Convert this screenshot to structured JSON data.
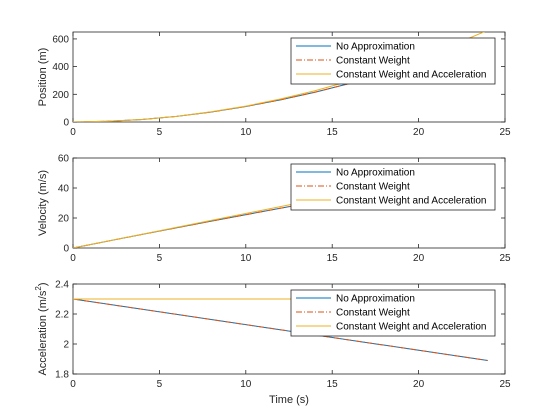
{
  "chart_data": [
    {
      "type": "line",
      "title": "",
      "xlabel": "",
      "ylabel": "Position (m)",
      "xlim": [
        0,
        25
      ],
      "ylim": [
        0,
        650
      ],
      "xticks": [
        0,
        5,
        10,
        15,
        20,
        25
      ],
      "xtick_labels": [
        "0",
        "5",
        "10",
        "15",
        "20",
        "25"
      ],
      "yticks": [
        0,
        200,
        400,
        600
      ],
      "ytick_labels": [
        "0",
        "200",
        "400",
        "600"
      ],
      "grid": false,
      "legend_position": "top-right",
      "series": [
        {
          "name": "No Approximation",
          "color": "#0072BD",
          "dash": "solid",
          "x": [
            0,
            2,
            4,
            6,
            8,
            10,
            12,
            14,
            16,
            18,
            20,
            22,
            24
          ],
          "y": [
            0,
            5,
            18,
            41,
            72,
            112,
            160,
            215,
            278,
            348,
            425,
            508,
            598
          ]
        },
        {
          "name": "Constant Weight",
          "color": "#D95319",
          "dash": "dashdot",
          "x": [
            0,
            2,
            4,
            6,
            8,
            10,
            12,
            14,
            16,
            18,
            20,
            22,
            24
          ],
          "y": [
            0,
            5,
            18,
            41,
            72,
            112,
            160,
            215,
            278,
            348,
            425,
            508,
            598
          ]
        },
        {
          "name": "Constant Weight and Acceleration",
          "color": "#EDB120",
          "dash": "solid",
          "x": [
            0,
            2,
            4,
            6,
            8,
            10,
            12,
            14,
            16,
            18,
            20,
            22,
            24
          ],
          "y": [
            0,
            5,
            18,
            41,
            74,
            115,
            166,
            226,
            295,
            373,
            460,
            557,
            662
          ]
        }
      ]
    },
    {
      "type": "line",
      "title": "",
      "xlabel": "",
      "ylabel": "Velocity (m/s)",
      "xlim": [
        0,
        25
      ],
      "ylim": [
        0,
        60
      ],
      "xticks": [
        0,
        5,
        10,
        15,
        20,
        25
      ],
      "xtick_labels": [
        "0",
        "5",
        "10",
        "15",
        "20",
        "25"
      ],
      "yticks": [
        0,
        20,
        40,
        60
      ],
      "ytick_labels": [
        "0",
        "20",
        "40",
        "60"
      ],
      "grid": false,
      "legend_position": "top-right",
      "series": [
        {
          "name": "No Approximation",
          "color": "#0072BD",
          "dash": "solid",
          "x": [
            0,
            4,
            8,
            12,
            16,
            20,
            24
          ],
          "y": [
            0,
            9.1,
            17.9,
            26.5,
            34.9,
            43.1,
            51.1
          ]
        },
        {
          "name": "Constant Weight",
          "color": "#D95319",
          "dash": "dashdot",
          "x": [
            0,
            4,
            8,
            12,
            16,
            20,
            24
          ],
          "y": [
            0,
            9.1,
            17.9,
            26.5,
            34.9,
            43.1,
            51.1
          ]
        },
        {
          "name": "Constant Weight and Acceleration",
          "color": "#EDB120",
          "dash": "solid",
          "x": [
            0,
            4,
            8,
            12,
            16,
            20,
            24
          ],
          "y": [
            0,
            9.2,
            18.4,
            27.6,
            36.8,
            46.0,
            55.2
          ]
        }
      ]
    },
    {
      "type": "line",
      "title": "",
      "xlabel": "Time (s)",
      "ylabel": "Acceleration (m/s",
      "ylabel_sup": "2",
      "ylabel_end": ")",
      "xlim": [
        0,
        25
      ],
      "ylim": [
        1.8,
        2.4
      ],
      "xticks": [
        0,
        5,
        10,
        15,
        20,
        25
      ],
      "xtick_labels": [
        "0",
        "5",
        "10",
        "15",
        "20",
        "25"
      ],
      "yticks": [
        1.8,
        2.0,
        2.2,
        2.4
      ],
      "ytick_labels": [
        "1.8",
        "2",
        "2.2",
        "2.4"
      ],
      "grid": false,
      "legend_position": "top-right",
      "series": [
        {
          "name": "No Approximation",
          "color": "#0072BD",
          "dash": "solid",
          "x": [
            0,
            24
          ],
          "y": [
            2.3,
            1.89
          ]
        },
        {
          "name": "Constant Weight",
          "color": "#D95319",
          "dash": "dashdot",
          "x": [
            0,
            24
          ],
          "y": [
            2.3,
            1.89
          ]
        },
        {
          "name": "Constant Weight and Acceleration",
          "color": "#EDB120",
          "dash": "solid",
          "x": [
            0,
            24
          ],
          "y": [
            2.3,
            2.3
          ]
        }
      ]
    }
  ]
}
